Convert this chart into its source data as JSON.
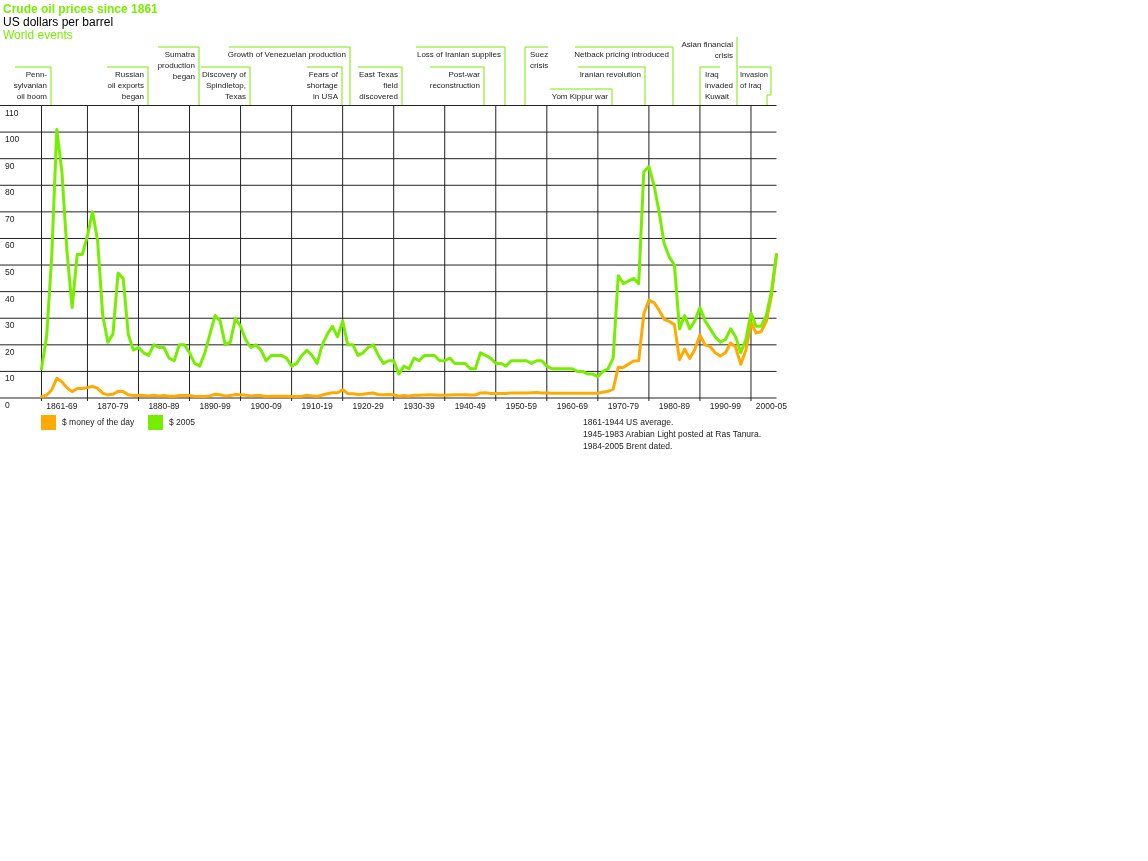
{
  "chart_data": {
    "type": "line",
    "title": "Crude oil prices since 1861",
    "subtitle": "US dollars per barrel",
    "categories": [
      null,
      null,
      null,
      null,
      "1861-69",
      null,
      null,
      null,
      null,
      null,
      null,
      null,
      null,
      null,
      "1870-79",
      null,
      null,
      null,
      null,
      null,
      null,
      null,
      null,
      null,
      "1880-89",
      null,
      null,
      null,
      null,
      null,
      null,
      null,
      null,
      null,
      "1890-99",
      null,
      null,
      null,
      null,
      null,
      null,
      null,
      null,
      null,
      "1900-09",
      null,
      null,
      null,
      null,
      null,
      null,
      null,
      null,
      null,
      "1910-19",
      null,
      null,
      null,
      null,
      null,
      null,
      null,
      null,
      null,
      "1920-29",
      null,
      null,
      null,
      null,
      null,
      null,
      null,
      null,
      null,
      "1930-39",
      null,
      null,
      null,
      null,
      null,
      null,
      null,
      null,
      null,
      "1940-49",
      null,
      null,
      null,
      null,
      null,
      null,
      null,
      null,
      null,
      "1950-59",
      null,
      null,
      null,
      null,
      null,
      null,
      null,
      null,
      null,
      "1960-69",
      null,
      null,
      null,
      null,
      null,
      null,
      null,
      null,
      null,
      "1970-79",
      null,
      null,
      null,
      null,
      null,
      null,
      null,
      null,
      null,
      "1980-89",
      null,
      null,
      null,
      null,
      null,
      null,
      null,
      null,
      null,
      "1990-99",
      null,
      null,
      null,
      null,
      null,
      null,
      null,
      null,
      "2000-05",
      null
    ],
    "series": [
      {
        "name": "$ money of the day",
        "color": "#ffaa00",
        "values": [
          0.5,
          1.1,
          3,
          7.4,
          6.1,
          3.8,
          2.4,
          3.6,
          3.6,
          3.9,
          4.4,
          3.6,
          1.8,
          1.2,
          1.4,
          2.5,
          2.4,
          1.2,
          0.9,
          1,
          0.9,
          0.8,
          1,
          0.8,
          0.9,
          0.7,
          0.7,
          0.9,
          0.9,
          0.9,
          0.7,
          0.6,
          0.6,
          0.8,
          1.4,
          1.2,
          0.8,
          0.9,
          1.3,
          1.2,
          1,
          0.8,
          0.9,
          0.9,
          0.6,
          0.7,
          0.7,
          0.7,
          0.7,
          0.6,
          0.6,
          0.7,
          1,
          0.8,
          0.6,
          1.1,
          1.6,
          2,
          2,
          3.1,
          1.7,
          1.6,
          1.3,
          1.4,
          1.7,
          1.9,
          1.3,
          1.2,
          1.3,
          1.2,
          0.7,
          0.9,
          0.7,
          1,
          1,
          1.1,
          1.2,
          1.1,
          1,
          1,
          1.1,
          1.2,
          1.2,
          1.2,
          1.1,
          1.1,
          1.9,
          2,
          1.7,
          1.7,
          1.7,
          1.7,
          1.9,
          1.9,
          1.9,
          1.9,
          2,
          2.1,
          1.9,
          1.9,
          1.8,
          1.8,
          1.8,
          1.8,
          1.8,
          1.8,
          1.8,
          1.8,
          1.8,
          1.8,
          2.2,
          2.5,
          3.3,
          11.6,
          11.5,
          12.8,
          13.9,
          14,
          31.6,
          36.8,
          35.9,
          33,
          29.6,
          28.8,
          27.6,
          14.4,
          18.4,
          14.9,
          18.2,
          23.7,
          20,
          19.3,
          17,
          15.8,
          17,
          20.7,
          19.1,
          12.7,
          18,
          28.5,
          24.4,
          25,
          28.8,
          38.3,
          54
        ]
      },
      {
        "name": "$ 2005",
        "color": "#77ee00",
        "values": [
          11,
          23,
          53,
          101,
          85,
          55,
          34,
          54,
          54,
          61,
          70,
          59,
          31,
          21,
          24,
          47,
          45,
          24,
          18,
          19,
          17,
          16,
          20,
          19,
          19,
          15,
          14,
          20,
          20,
          17,
          13,
          12,
          17,
          24,
          31,
          29,
          20,
          21,
          30,
          27,
          22,
          19,
          20,
          18,
          14,
          16,
          16,
          16,
          15,
          12,
          13,
          16,
          18,
          16,
          13,
          20,
          24,
          27,
          23,
          29,
          20,
          20,
          16,
          17,
          19,
          20,
          16,
          13,
          14,
          14,
          9,
          12,
          11,
          15,
          14,
          16,
          16,
          16,
          14,
          14,
          15,
          13,
          13,
          13,
          11,
          11,
          17,
          16,
          15,
          13,
          13,
          12,
          14,
          14,
          14,
          14,
          13,
          14,
          14,
          12,
          11,
          11,
          11,
          11,
          11,
          10,
          10,
          9,
          9,
          8,
          10,
          11,
          15,
          46,
          43,
          44,
          45,
          43,
          85,
          87,
          80,
          70,
          58,
          53,
          50,
          26,
          31,
          26,
          29,
          34,
          29,
          26,
          23,
          21,
          22,
          26,
          23,
          17,
          22,
          32,
          27,
          27,
          31,
          40,
          54
        ]
      }
    ],
    "ylim": [
      0,
      110
    ],
    "yticks": [
      0,
      10,
      20,
      30,
      40,
      50,
      60,
      70,
      80,
      90,
      100,
      110
    ],
    "grid": true,
    "legend": "bottom left",
    "annotations": [
      "World events",
      "Penn-\nsylvanian\noil boom",
      "Russian\noil exports\nbegan",
      "Sumatra\nproduction\nbegan",
      "Discovery of\nSpindletop,\nTexas",
      "Growth of Venezuelan production",
      "Fears of\nshortage\nin USA",
      "East Texas\nfield\ndiscovered",
      "Loss of Iranian supplies",
      "Post-war\nreconstruction",
      "Suez\ncrisis",
      "Netback pricing introduced",
      "Iranian revolution",
      "Yom Kippur war",
      "Asian financial\ncrisis",
      "Iraq\ninvaded\nKuwait",
      "Invasion\nof Iraq",
      "1861-1944 US average.",
      "1945-1983 Arabian Light posted at Ras Tanura.",
      "1984-2005 Brent dated."
    ]
  }
}
